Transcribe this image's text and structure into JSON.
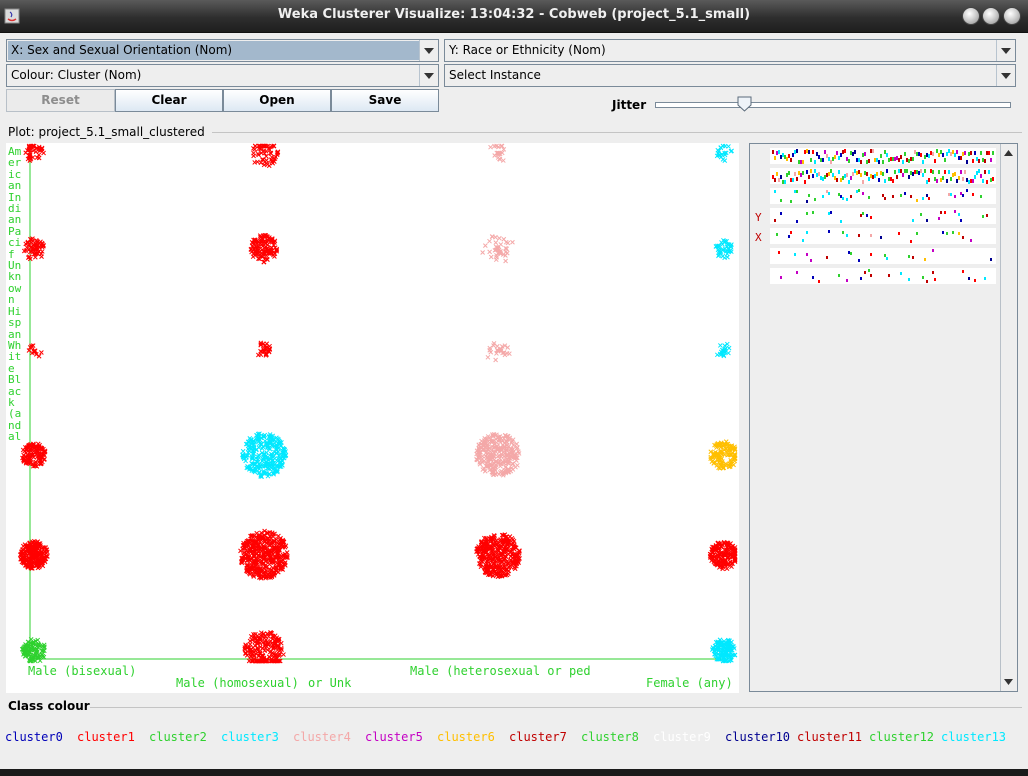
{
  "window": {
    "title": "Weka Clusterer Visualize: 13:04:32 - Cobweb (project_5.1_small)"
  },
  "controls": {
    "x_axis": "X: Sex and Sexual Orientation (Nom)",
    "y_axis": "Y: Race or Ethnicity (Nom)",
    "colour": "Colour: Cluster (Nom)",
    "select_instance": "Select Instance",
    "buttons": {
      "reset": "Reset",
      "clear": "Clear",
      "open": "Open",
      "save": "Save"
    },
    "jitter_label": "Jitter",
    "jitter_fraction": 0.25
  },
  "plot": {
    "title": "Plot: project_5.1_small_clustered",
    "y_axis_text": "American Indian Pacif Unknown Hispan White Black (and al",
    "x_labels": [
      "Male (bisexual)",
      "Male (homosexual)",
      "or Unk",
      "Male (heterosexual or ped",
      "Female (any)"
    ],
    "side_y_marker": "Y",
    "side_x_marker": "X"
  },
  "legend": {
    "title": "Class colour",
    "items": [
      {
        "label": "cluster0",
        "color": "#0000b8"
      },
      {
        "label": "cluster1",
        "color": "#ff0000"
      },
      {
        "label": "cluster2",
        "color": "#2fd12f"
      },
      {
        "label": "cluster3",
        "color": "#00e8ff"
      },
      {
        "label": "cluster4",
        "color": "#f4a8a8"
      },
      {
        "label": "cluster5",
        "color": "#c400c4"
      },
      {
        "label": "cluster6",
        "color": "#ffbf00"
      },
      {
        "label": "cluster7",
        "color": "#c00000"
      },
      {
        "label": "cluster8",
        "color": "#2fd12f"
      },
      {
        "label": "cluster9",
        "color": "#ffffff"
      },
      {
        "label": "cluster10",
        "color": "#000090"
      },
      {
        "label": "cluster11",
        "color": "#c00000"
      },
      {
        "label": "cluster12",
        "color": "#2fd12f"
      },
      {
        "label": "cluster13",
        "color": "#00e8ff"
      }
    ]
  }
}
